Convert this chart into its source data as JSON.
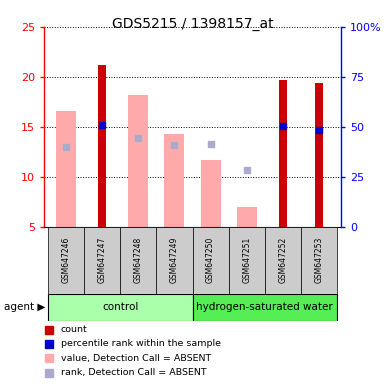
{
  "title": "GDS5215 / 1398157_at",
  "samples": [
    "GSM647246",
    "GSM647247",
    "GSM647248",
    "GSM647249",
    "GSM647250",
    "GSM647251",
    "GSM647252",
    "GSM647253"
  ],
  "ylim_left": [
    5,
    25
  ],
  "ylim_right": [
    0,
    100
  ],
  "yticks_left": [
    5,
    10,
    15,
    20,
    25
  ],
  "yticks_right": [
    0,
    25,
    50,
    75,
    100
  ],
  "ytick_labels_right": [
    "0",
    "25",
    "50",
    "75",
    "100%"
  ],
  "count_values": [
    null,
    21.2,
    null,
    null,
    null,
    null,
    19.7,
    19.4
  ],
  "rank_values": [
    null,
    15.2,
    null,
    null,
    null,
    null,
    15.1,
    14.7
  ],
  "absent_value_values": [
    16.6,
    null,
    18.2,
    14.3,
    11.7,
    7.0,
    null,
    null
  ],
  "absent_rank_values": [
    13.0,
    null,
    13.9,
    13.2,
    13.3,
    10.7,
    null,
    null
  ],
  "color_count": "#cc0000",
  "color_rank": "#0000cc",
  "color_absent_value": "#ffaaaa",
  "color_absent_rank": "#aaaacc",
  "group_control_color": "#aaffaa",
  "group_hw_color": "#55ee55",
  "n_control": 4,
  "n_hw": 4,
  "bar_width": 0.55,
  "count_bar_width": 0.22
}
